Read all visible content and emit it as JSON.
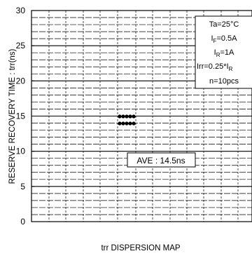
{
  "chart_data": {
    "type": "scatter",
    "title": "",
    "xlabel": "trr DISPERSION MAP",
    "ylabel": "RESERVE RECOVERY TIME : trr(ns)",
    "ylim": [
      0,
      30
    ],
    "y_ticks": [
      "0",
      "5",
      "10",
      "15",
      "20",
      "25",
      "30"
    ],
    "grid": true,
    "conditions": [
      {
        "key": "ta",
        "main": "Ta=25°C"
      },
      {
        "key": "if",
        "main": "I",
        "sub": "F",
        "rest": "=0.5A"
      },
      {
        "key": "ir",
        "main": "I",
        "sub": "R",
        "rest": "=1A"
      },
      {
        "key": "irr",
        "main": "Irr=0.25*I",
        "sub": "R",
        "rest": ""
      },
      {
        "key": "n",
        "main": "n=10pcs"
      }
    ],
    "average_label": "AVE : 14.5ns",
    "average": 14.5,
    "points": [
      {
        "y": 15
      },
      {
        "y": 15
      },
      {
        "y": 15
      },
      {
        "y": 15
      },
      {
        "y": 15
      },
      {
        "y": 14
      },
      {
        "y": 14
      },
      {
        "y": 14
      },
      {
        "y": 14
      },
      {
        "y": 14
      }
    ]
  }
}
